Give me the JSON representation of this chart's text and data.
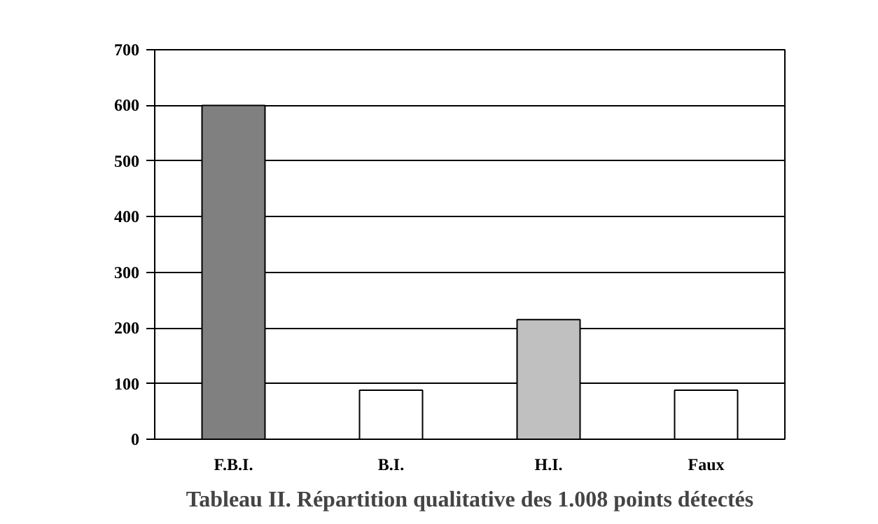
{
  "chart_data": {
    "type": "bar",
    "title": "Tableau II. Répartition qualitative des 1.008 points détectés",
    "categories": [
      "F.B.I.",
      "B.I.",
      "H.I.",
      "Faux"
    ],
    "values": [
      600,
      88,
      215,
      88
    ],
    "colors": [
      "#808080",
      "#ffffff",
      "#c0c0c0",
      "#ffffff"
    ],
    "ylim": [
      0,
      700
    ],
    "yticks": [
      0,
      100,
      200,
      300,
      400,
      500,
      600,
      700
    ],
    "grid": "y"
  }
}
